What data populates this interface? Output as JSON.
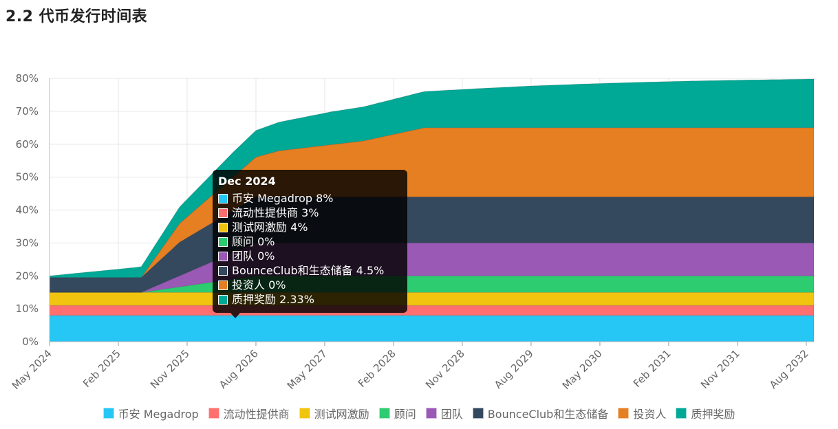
{
  "page": {
    "title": "2.2 代币发行时间表"
  },
  "chart_data": {
    "type": "area",
    "stacked": true,
    "y_tick_labels": [
      "0%",
      "10%",
      "20%",
      "30%",
      "40%",
      "50%",
      "60%",
      "70%",
      "80%"
    ],
    "ylim": [
      0,
      80
    ],
    "x_tick_labels": [
      "May 2024",
      "Feb 2025",
      "Nov 2025",
      "Aug 2026",
      "May 2027",
      "Feb 2028",
      "Nov 2028",
      "Aug 2029",
      "May 2030",
      "Feb 2031",
      "Nov 2031",
      "Aug 2032"
    ],
    "x_range_months": [
      0,
      100
    ],
    "grid": true,
    "legend_position": "bottom",
    "series": [
      {
        "name": "币安 Megadrop",
        "color": "#26c6f5",
        "x": [
          0,
          100
        ],
        "values": [
          8,
          8
        ]
      },
      {
        "name": "流动性提供商",
        "color": "#ff6f6f",
        "x": [
          0,
          100
        ],
        "values": [
          3,
          3
        ]
      },
      {
        "name": "测试网激励",
        "color": "#f1c40f",
        "x": [
          0,
          100
        ],
        "values": [
          4,
          4
        ]
      },
      {
        "name": "顾问",
        "color": "#2ecc71",
        "x": [
          0,
          12,
          27,
          100
        ],
        "values": [
          0,
          0,
          5,
          5
        ]
      },
      {
        "name": "团队",
        "color": "#9b59b6",
        "x": [
          0,
          12,
          27,
          100
        ],
        "values": [
          0,
          0,
          10,
          10
        ]
      },
      {
        "name": "BounceClub和生态储备",
        "color": "#34495e",
        "x": [
          0,
          12,
          17,
          27,
          100
        ],
        "values": [
          4.5,
          4.5,
          10.2,
          14,
          14
        ]
      },
      {
        "name": "投资人",
        "color": "#e67e22",
        "x": [
          0,
          12,
          17,
          30,
          41,
          49,
          100
        ],
        "values": [
          0,
          0,
          5.7,
          14,
          17,
          21,
          21
        ]
      },
      {
        "name": "质押奖励",
        "color": "#00a896",
        "x": [
          0,
          11,
          12,
          17,
          24,
          29,
          37,
          49,
          56,
          63,
          70,
          77,
          84,
          91,
          100
        ],
        "values": [
          0.5,
          3,
          3.3,
          5,
          7.5,
          8.5,
          10,
          11,
          11.9,
          12.7,
          13.3,
          13.8,
          14.2,
          14.5,
          14.8
        ]
      }
    ]
  },
  "tooltip": {
    "title": "Dec 2024",
    "rows": [
      {
        "label": "币安 Megadrop 8%",
        "color": "#26c6f5"
      },
      {
        "label": "流动性提供商 3%",
        "color": "#ff6f6f"
      },
      {
        "label": "测试网激励 4%",
        "color": "#f1c40f"
      },
      {
        "label": "顾问 0%",
        "color": "#2ecc71"
      },
      {
        "label": "团队 0%",
        "color": "#9b59b6"
      },
      {
        "label": "BounceClub和生态储备 4.5%",
        "color": "#34495e"
      },
      {
        "label": "投资人 0%",
        "color": "#e67e22"
      },
      {
        "label": "质押奖励 2.33%",
        "color": "#00a896"
      }
    ]
  }
}
